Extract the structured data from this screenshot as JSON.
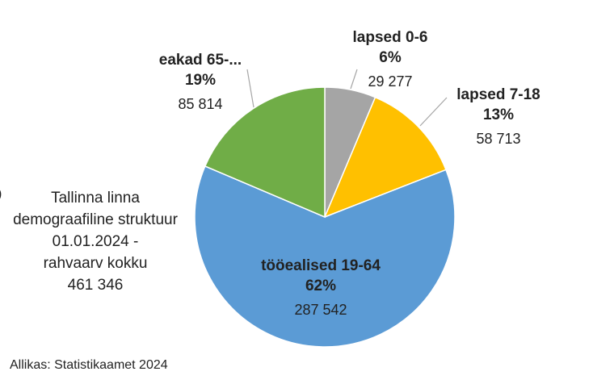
{
  "chart_data": {
    "type": "pie",
    "title_lines": [
      "Tallinna linna",
      "demograafiline struktuur",
      "01.01.2024 -",
      "rahvaarv kokku",
      "461 346"
    ],
    "slices": [
      {
        "label": "lapsed 0-6",
        "percent": "6%",
        "value_text": "29 277",
        "value": 29277,
        "color": "#a5a5a5"
      },
      {
        "label": "lapsed 7-18",
        "percent": "13%",
        "value_text": "58 713",
        "value": 58713,
        "color": "#ffc000"
      },
      {
        "label": "tööealised 19-64",
        "percent": "62%",
        "value_text": "287 542",
        "value": 287542,
        "color": "#5b9bd5"
      },
      {
        "label": "eakad 65-...",
        "percent": "19%",
        "value_text": "85 814",
        "value": 85814,
        "color": "#70ad47"
      }
    ],
    "start_angle_deg": 0,
    "direction": "clockwise"
  },
  "source": "Allikas: Statistikaamet 2024",
  "bullet": ")"
}
